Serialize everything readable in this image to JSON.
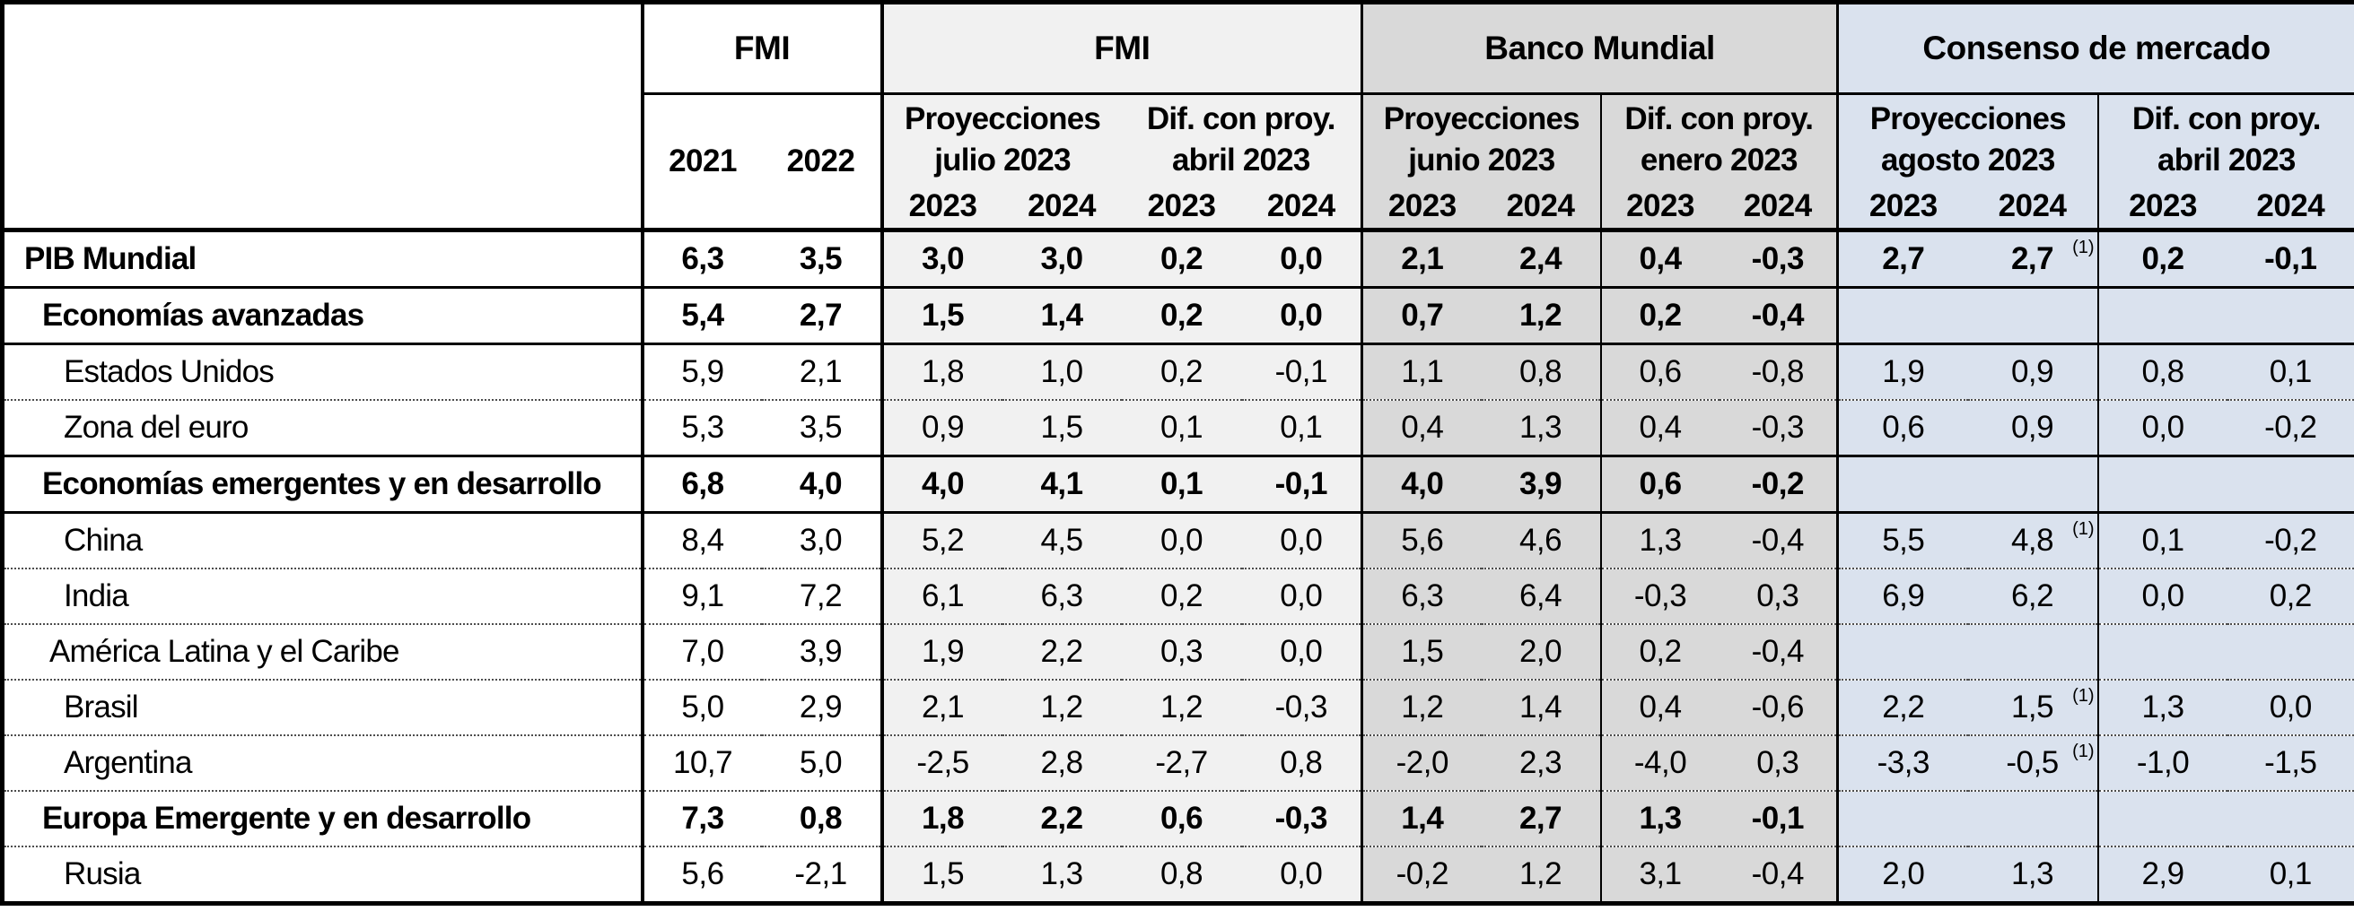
{
  "colors": {
    "fmi_group_bg": "#f1f1f1",
    "bm_group_bg": "#d9d9d9",
    "consenso_group_bg": "#dae2ee",
    "border": "#000000"
  },
  "table": {
    "corner": "",
    "header": {
      "top_groups": [
        {
          "label": "FMI"
        },
        {
          "label": "FMI"
        },
        {
          "label": "Banco Mundial"
        },
        {
          "label": "Consenso de mercado"
        }
      ],
      "years_hist": [
        "2021",
        "2022"
      ],
      "subgroups": [
        {
          "line1": "Proyecciones",
          "line2": "julio 2023"
        },
        {
          "line1": "Dif. con proy.",
          "line2": "abril 2023"
        },
        {
          "line1": "Proyecciones",
          "line2": "junio 2023"
        },
        {
          "line1": "Dif. con proy.",
          "line2": "enero 2023"
        },
        {
          "line1": "Proyecciones",
          "line2": "agosto 2023"
        },
        {
          "line1": "Dif. con proy.",
          "line2": "abril 2023"
        }
      ],
      "year_cols": [
        "2023",
        "2024",
        "2023",
        "2024",
        "2023",
        "2024",
        "2023",
        "2024",
        "2023",
        "2024",
        "2023",
        "2024"
      ]
    },
    "rows": [
      {
        "label": "PIB Mundial",
        "bold": true,
        "level": 0,
        "separator": "solid",
        "footnote": "(1)",
        "values": [
          "6,3",
          "3,5",
          "3,0",
          "3,0",
          "0,2",
          "0,0",
          "2,1",
          "2,4",
          "0,4",
          "-0,3",
          "2,7",
          "2,7",
          "0,2",
          "-0,1"
        ]
      },
      {
        "label": "Economías avanzadas",
        "bold": true,
        "level": 1,
        "separator": "solid",
        "footnote": "",
        "values": [
          "5,4",
          "2,7",
          "1,5",
          "1,4",
          "0,2",
          "0,0",
          "0,7",
          "1,2",
          "0,2",
          "-0,4",
          "",
          "",
          "",
          ""
        ]
      },
      {
        "label": "Estados Unidos",
        "bold": false,
        "level": 3,
        "separator": "dotted",
        "footnote": "",
        "values": [
          "5,9",
          "2,1",
          "1,8",
          "1,0",
          "0,2",
          "-0,1",
          "1,1",
          "0,8",
          "0,6",
          "-0,8",
          "1,9",
          "0,9",
          "0,8",
          "0,1"
        ]
      },
      {
        "label": "Zona del euro",
        "bold": false,
        "level": 3,
        "separator": "solid",
        "footnote": "",
        "values": [
          "5,3",
          "3,5",
          "0,9",
          "1,5",
          "0,1",
          "0,1",
          "0,4",
          "1,3",
          "0,4",
          "-0,3",
          "0,6",
          "0,9",
          "0,0",
          "-0,2"
        ]
      },
      {
        "label": "Economías emergentes y en desarrollo",
        "bold": true,
        "level": 1,
        "separator": "solid",
        "footnote": "",
        "values": [
          "6,8",
          "4,0",
          "4,0",
          "4,1",
          "0,1",
          "-0,1",
          "4,0",
          "3,9",
          "0,6",
          "-0,2",
          "",
          "",
          "",
          ""
        ]
      },
      {
        "label": "China",
        "bold": false,
        "level": 3,
        "separator": "dotted",
        "footnote": "(1)",
        "values": [
          "8,4",
          "3,0",
          "5,2",
          "4,5",
          "0,0",
          "0,0",
          "5,6",
          "4,6",
          "1,3",
          "-0,4",
          "5,5",
          "4,8",
          "0,1",
          "-0,2"
        ]
      },
      {
        "label": "India",
        "bold": false,
        "level": 3,
        "separator": "dotted",
        "footnote": "",
        "values": [
          "9,1",
          "7,2",
          "6,1",
          "6,3",
          "0,2",
          "0,0",
          "6,3",
          "6,4",
          "-0,3",
          "0,3",
          "6,9",
          "6,2",
          "0,0",
          "0,2"
        ]
      },
      {
        "label": "América Latina y el Caribe",
        "bold": false,
        "level": 2,
        "separator": "dotted",
        "footnote": "",
        "values": [
          "7,0",
          "3,9",
          "1,9",
          "2,2",
          "0,3",
          "0,0",
          "1,5",
          "2,0",
          "0,2",
          "-0,4",
          "",
          "",
          "",
          ""
        ]
      },
      {
        "label": "Brasil",
        "bold": false,
        "level": 3,
        "separator": "dotted",
        "footnote": "(1)",
        "values": [
          "5,0",
          "2,9",
          "2,1",
          "1,2",
          "1,2",
          "-0,3",
          "1,2",
          "1,4",
          "0,4",
          "-0,6",
          "2,2",
          "1,5",
          "1,3",
          "0,0"
        ]
      },
      {
        "label": "Argentina",
        "bold": false,
        "level": 3,
        "separator": "dotted",
        "footnote": "(1)",
        "values": [
          "10,7",
          "5,0",
          "-2,5",
          "2,8",
          "-2,7",
          "0,8",
          "-2,0",
          "2,3",
          "-4,0",
          "0,3",
          "-3,3",
          "-0,5",
          "-1,0",
          "-1,5"
        ]
      },
      {
        "label": "Europa Emergente y en desarrollo",
        "bold": true,
        "level": 1,
        "separator": "dotted",
        "footnote": "",
        "values": [
          "7,3",
          "0,8",
          "1,8",
          "2,2",
          "0,6",
          "-0,3",
          "1,4",
          "2,7",
          "1,3",
          "-0,1",
          "",
          "",
          "",
          ""
        ]
      },
      {
        "label": "Rusia",
        "bold": false,
        "level": 3,
        "separator": "last",
        "footnote": "",
        "values": [
          "5,6",
          "-2,1",
          "1,5",
          "1,3",
          "0,8",
          "0,0",
          "-0,2",
          "1,2",
          "3,1",
          "-0,4",
          "2,0",
          "1,3",
          "2,9",
          "0,1"
        ]
      }
    ]
  }
}
